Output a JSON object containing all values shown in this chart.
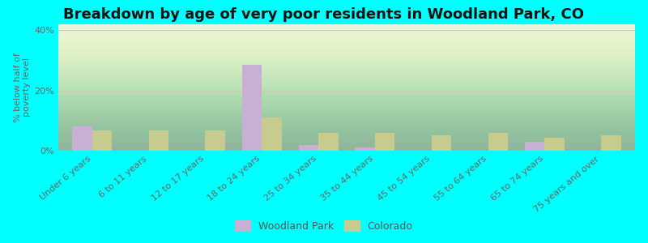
{
  "title": "Breakdown by age of very poor residents in Woodland Park, CO",
  "categories": [
    "Under 6 years",
    "6 to 11 years",
    "12 to 17 years",
    "18 to 24 years",
    "25 to 34 years",
    "35 to 44 years",
    "45 to 54 years",
    "55 to 64 years",
    "65 to 74 years",
    "75 years and over"
  ],
  "woodland_park": [
    8.0,
    0.0,
    0.0,
    28.5,
    2.0,
    1.0,
    0.0,
    0.0,
    3.0,
    0.0
  ],
  "colorado": [
    6.8,
    6.8,
    6.8,
    11.0,
    6.0,
    5.8,
    5.2,
    5.8,
    4.2,
    5.0
  ],
  "wp_color": "#c9afd4",
  "co_color": "#c8cb8e",
  "background_outer": "#00ffff",
  "ylabel": "% below half of\npoverty level",
  "ylim": [
    0,
    42
  ],
  "yticks": [
    0,
    20,
    40
  ],
  "ytick_labels": [
    "0%",
    "20%",
    "40%"
  ],
  "bar_width": 0.35,
  "title_fontsize": 13,
  "tick_fontsize": 8,
  "legend_wp": "Woodland Park",
  "legend_co": "Colorado"
}
